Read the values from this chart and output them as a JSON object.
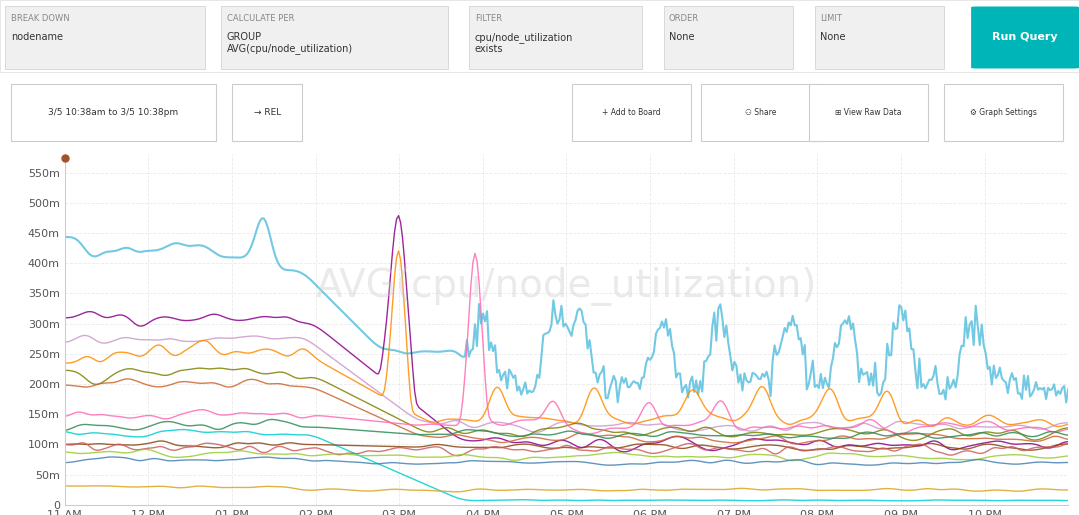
{
  "title": "AVG(cpu/node_utilization)",
  "title_color": "#cccccc",
  "title_fontsize": 28,
  "ylabel_ticks": [
    "0",
    "50m",
    "100m",
    "150m",
    "200m",
    "250m",
    "300m",
    "350m",
    "400m",
    "450m",
    "500m",
    "550m"
  ],
  "ytick_values": [
    0,
    50,
    100,
    150,
    200,
    250,
    300,
    350,
    400,
    450,
    500,
    550
  ],
  "xtick_labels": [
    "11 AM",
    "12 PM",
    "01 PM",
    "02 PM",
    "03 PM",
    "04 PM",
    "05 PM",
    "06 PM",
    "07 PM",
    "08 PM",
    "09 PM",
    "10 PM"
  ],
  "xtick_positions": [
    0,
    60,
    120,
    180,
    240,
    300,
    360,
    420,
    480,
    540,
    600,
    660
  ],
  "time_range_minutes": 720,
  "background_color": "#ffffff",
  "plot_bg_color": "#ffffff",
  "grid_color": "#e0e0e0",
  "line_colors": [
    "#5bc0de",
    "#8b008b",
    "#cc99cc",
    "#ff8c00",
    "#808000",
    "#cc6633",
    "#ff69b4",
    "#2e8b57",
    "#00ced1",
    "#8b4513",
    "#cd5c5c",
    "#9acd32",
    "#4682b4",
    "#daa520"
  ],
  "ymax": 580,
  "ymin": 0,
  "header_bg": "#f5f5f5",
  "button_color": "#00b5b8",
  "marker_color": "#a0522d"
}
